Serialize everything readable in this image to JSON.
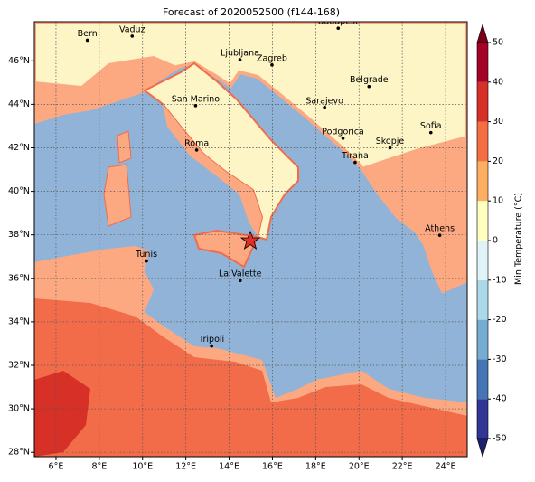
{
  "map": {
    "title": "Forecast of 2020052500 (f144-168)",
    "xlim": [
      5,
      25
    ],
    "ylim": [
      27.8,
      47.8
    ],
    "xticks": [
      {
        "value": 6,
        "label": "6°E"
      },
      {
        "value": 8,
        "label": "8°E"
      },
      {
        "value": 10,
        "label": "10°E"
      },
      {
        "value": 12,
        "label": "12°E"
      },
      {
        "value": 14,
        "label": "14°E"
      },
      {
        "value": 16,
        "label": "16°E"
      },
      {
        "value": 18,
        "label": "18°E"
      },
      {
        "value": 20,
        "label": "20°E"
      },
      {
        "value": 22,
        "label": "22°E"
      },
      {
        "value": 24,
        "label": "24°E"
      }
    ],
    "yticks": [
      {
        "value": 28,
        "label": "28°N"
      },
      {
        "value": 30,
        "label": "30°N"
      },
      {
        "value": 32,
        "label": "32°N"
      },
      {
        "value": 34,
        "label": "34°N"
      },
      {
        "value": 36,
        "label": "36°N"
      },
      {
        "value": 38,
        "label": "38°N"
      },
      {
        "value": 40,
        "label": "40°N"
      },
      {
        "value": 42,
        "label": "42°N"
      },
      {
        "value": 44,
        "label": "44°N"
      },
      {
        "value": 46,
        "label": "46°N"
      }
    ],
    "grid": true,
    "cities": [
      {
        "name": "Bern",
        "lon": 7.45,
        "lat": 46.95
      },
      {
        "name": "Vaduz",
        "lon": 9.52,
        "lat": 47.14
      },
      {
        "name": "Budapest",
        "lon": 19.04,
        "lat": 47.5
      },
      {
        "name": "Ljubljana",
        "lon": 14.5,
        "lat": 46.05
      },
      {
        "name": "Zagreb",
        "lon": 15.98,
        "lat": 45.81
      },
      {
        "name": "Belgrade",
        "lon": 20.46,
        "lat": 44.82
      },
      {
        "name": "San Marino",
        "lon": 12.45,
        "lat": 43.94
      },
      {
        "name": "Sarajevo",
        "lon": 18.41,
        "lat": 43.86
      },
      {
        "name": "Sofia",
        "lon": 23.32,
        "lat": 42.7
      },
      {
        "name": "Podgorica",
        "lon": 19.26,
        "lat": 42.44
      },
      {
        "name": "Skopje",
        "lon": 21.43,
        "lat": 42.0
      },
      {
        "name": "Roma",
        "lon": 12.5,
        "lat": 41.9
      },
      {
        "name": "Tirana",
        "lon": 19.82,
        "lat": 41.33
      },
      {
        "name": "Athens",
        "lon": 23.73,
        "lat": 37.98
      },
      {
        "name": "Tunis",
        "lon": 10.18,
        "lat": 36.8
      },
      {
        "name": "La Valette",
        "lon": 14.51,
        "lat": 35.9
      },
      {
        "name": "Tripoli",
        "lon": 13.19,
        "lat": 32.89
      }
    ]
  },
  "colorbar": {
    "label": "Min Temperature (°C)",
    "lim": [
      -50,
      50
    ],
    "ticks": [
      -50,
      -40,
      -30,
      -20,
      -10,
      0,
      10,
      20,
      30,
      40,
      50
    ],
    "colors": [
      "#313695",
      "#4575b4",
      "#74add1",
      "#abd9e9",
      "#e0f3f8",
      "#ffffbf",
      "#fdae61",
      "#f46d43",
      "#d73027",
      "#a50026"
    ],
    "under": "#1a1f6e",
    "over": "#7a0019"
  }
}
